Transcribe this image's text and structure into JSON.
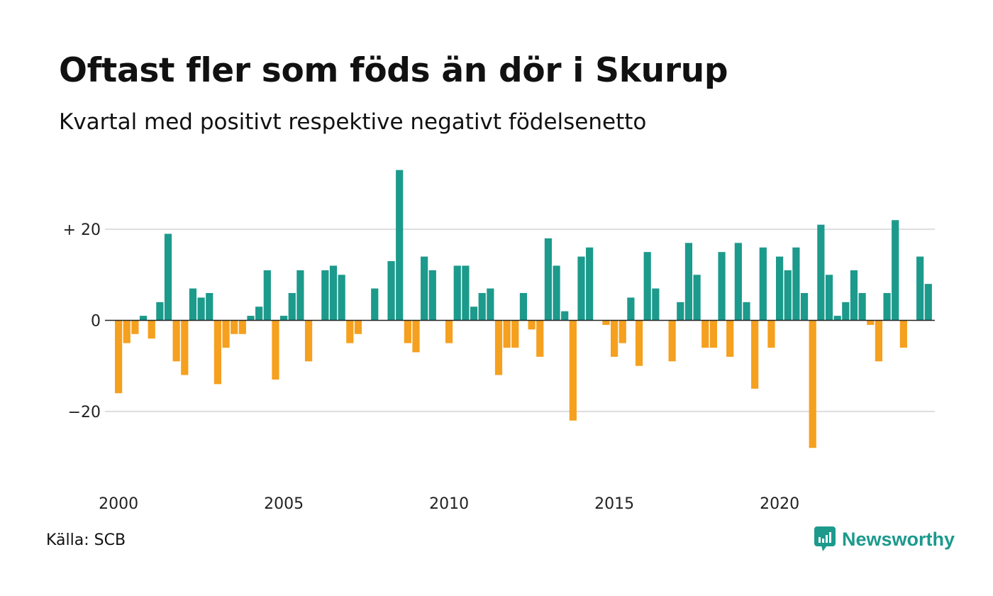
{
  "header": {
    "title": "Oftast fler som föds än dör i Skurup",
    "subtitle": "Kvartal med positivt respektive negativt födelsenetto"
  },
  "footer": {
    "source": "Källa: SCB",
    "brand": "Newsworthy"
  },
  "colors": {
    "positive": "#1c9a8c",
    "negative": "#f5a01e",
    "grid": "#dddddd",
    "zero_line": "#222222"
  },
  "chart_data": {
    "type": "bar",
    "title": "Oftast fler som föds än dör i Skurup",
    "subtitle": "Kvartal med positivt respektive negativt födelsenetto",
    "xlabel": "",
    "ylabel": "",
    "x_start": {
      "year": 2000,
      "quarter": 1
    },
    "quarters_per_year": 4,
    "x_tick_labels": [
      "2000",
      "2005",
      "2010",
      "2015",
      "2020"
    ],
    "y_ticks": [
      {
        "value": 20,
        "label": "+ 20"
      },
      {
        "value": 0,
        "label": "0"
      },
      {
        "value": -20,
        "label": "−20"
      }
    ],
    "ylim": [
      -30,
      35
    ],
    "grid": true,
    "legend": "none",
    "values": [
      -16,
      -5,
      -3,
      1,
      -4,
      4,
      19,
      -9,
      -12,
      7,
      5,
      6,
      -14,
      -6,
      -3,
      -3,
      1,
      3,
      11,
      -13,
      1,
      6,
      11,
      -9,
      0,
      11,
      12,
      10,
      -5,
      -3,
      0,
      7,
      0,
      13,
      33,
      -5,
      -7,
      14,
      11,
      0,
      -5,
      12,
      12,
      3,
      6,
      7,
      -12,
      -6,
      -6,
      6,
      -2,
      -8,
      18,
      12,
      2,
      -22,
      14,
      16,
      0,
      -1,
      -8,
      -5,
      5,
      -10,
      15,
      7,
      0,
      -9,
      4,
      17,
      10,
      -6,
      -6,
      15,
      -8,
      17,
      4,
      -15,
      16,
      -6,
      14,
      11,
      16,
      6,
      -28,
      21,
      10,
      1,
      4,
      11,
      6,
      -1,
      -9,
      6,
      22,
      -6,
      0,
      14,
      8
    ]
  }
}
